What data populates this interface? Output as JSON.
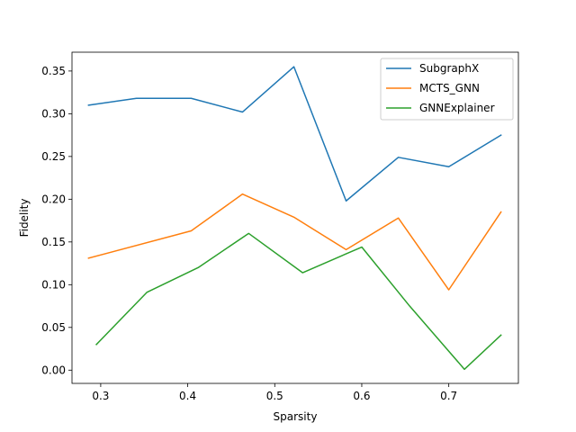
{
  "chart_data": {
    "type": "line",
    "title": "",
    "xlabel": "Sparsity",
    "ylabel": "Fidelity",
    "xlim": [
      0.267,
      0.78
    ],
    "ylim": [
      -0.0155,
      0.372
    ],
    "xticks": [
      0.3,
      0.4,
      0.5,
      0.6,
      0.7
    ],
    "yticks": [
      0.0,
      0.05,
      0.1,
      0.15,
      0.2,
      0.25,
      0.3,
      0.35
    ],
    "xtick_labels": [
      "0.3",
      "0.4",
      "0.5",
      "0.6",
      "0.7"
    ],
    "ytick_labels": [
      "0.00",
      "0.05",
      "0.10",
      "0.15",
      "0.20",
      "0.25",
      "0.30",
      "0.35"
    ],
    "grid": false,
    "legend": "top-right",
    "series": [
      {
        "name": "SubgraphX",
        "color": "#1f77b4",
        "x": [
          0.286,
          0.341,
          0.404,
          0.463,
          0.522,
          0.582,
          0.642,
          0.7,
          0.76
        ],
        "y": [
          0.31,
          0.318,
          0.318,
          0.302,
          0.355,
          0.198,
          0.249,
          0.238,
          0.275
        ]
      },
      {
        "name": "MCTS_GNN",
        "color": "#ff7f0e",
        "x": [
          0.286,
          0.404,
          0.463,
          0.522,
          0.582,
          0.642,
          0.7,
          0.76
        ],
        "y": [
          0.131,
          0.163,
          0.206,
          0.179,
          0.141,
          0.178,
          0.094,
          0.185
        ]
      },
      {
        "name": "GNNExplainer",
        "color": "#2ca02c",
        "x": [
          0.295,
          0.353,
          0.412,
          0.47,
          0.532,
          0.6,
          0.655,
          0.718,
          0.76
        ],
        "y": [
          0.03,
          0.091,
          0.12,
          0.16,
          0.114,
          0.144,
          0.075,
          0.001,
          0.041
        ]
      }
    ]
  }
}
